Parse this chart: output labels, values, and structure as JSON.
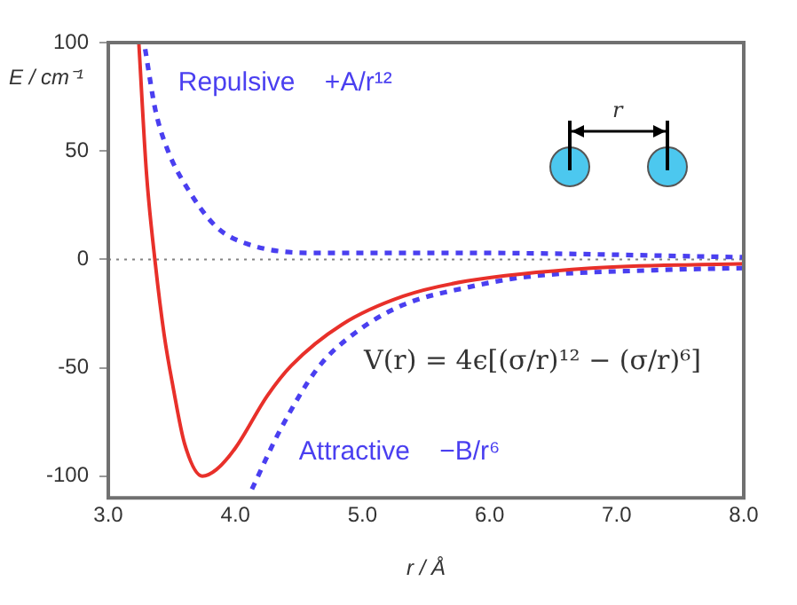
{
  "chart_data": {
    "type": "line",
    "xlabel": "r / Å",
    "ylabel": "E / cm⁻¹",
    "xlim": [
      3,
      8
    ],
    "xticks": [
      {
        "value": 3,
        "label": "3.0"
      },
      {
        "value": 4,
        "label": "4.0"
      },
      {
        "value": 5,
        "label": "5.0"
      },
      {
        "value": 6,
        "label": "6.0"
      },
      {
        "value": 7,
        "label": "7.0"
      },
      {
        "value": 8,
        "label": "8.0"
      }
    ],
    "ylim": [
      -110,
      100
    ],
    "yticks": [
      -100,
      -50,
      0,
      50,
      100
    ],
    "grid": false,
    "legend": false,
    "marker": "none",
    "series": [
      {
        "color": "#e8302a",
        "line_style": "solid",
        "x": [
          3.24,
          3.3,
          3.37,
          3.44,
          3.51,
          3.6,
          3.74,
          3.85,
          4.0,
          4.25,
          4.44,
          4.84,
          5.32,
          5.82,
          6.8,
          8.0
        ],
        "values": [
          100,
          40,
          -2,
          -35,
          -59,
          -85,
          -100,
          -97,
          -87,
          -63,
          -49,
          -30,
          -17,
          -10,
          -4,
          -2
        ]
      },
      {
        "name": "Repulsive    +A/r¹²",
        "color": "#4a3ff0",
        "line_style": "dashed",
        "x": [
          3.29,
          3.37,
          3.47,
          3.62,
          3.85,
          4.1,
          4.59,
          5.8,
          8.0
        ],
        "values": [
          97,
          69,
          50,
          33,
          15,
          7,
          3,
          3,
          1
        ]
      },
      {
        "name": "Attractive    −B/r⁶",
        "color": "#4a3ff0",
        "line_style": "dashed",
        "x": [
          4.13,
          4.35,
          4.65,
          4.94,
          5.32,
          5.82,
          6.3,
          7.3,
          8.0
        ],
        "values": [
          -106,
          -79,
          -50,
          -34,
          -21,
          -13,
          -8,
          -5,
          -4
        ]
      }
    ],
    "ref_lines": [
      {
        "axis": "y",
        "value": 0,
        "color": "#808080",
        "line_style": "dotted"
      }
    ],
    "annotations": [
      "V(r) = 4ϵ[(σ/r)¹² − (σ/r)⁶]",
      "r"
    ]
  }
}
